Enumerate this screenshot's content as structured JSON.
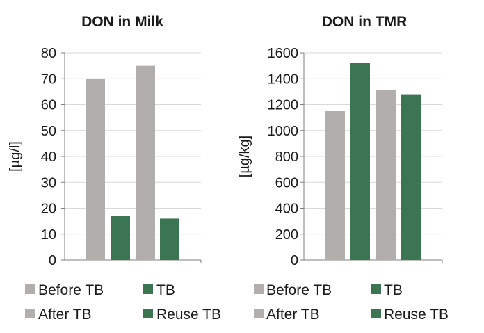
{
  "chart_data": [
    {
      "type": "bar",
      "title": "DON in Milk",
      "ylabel": "[µg/l]",
      "xlabel": "",
      "ylim": [
        0,
        80
      ],
      "yticks": [
        0,
        10,
        20,
        30,
        40,
        50,
        60,
        70,
        80
      ],
      "grid": true,
      "legend_position": "bottom",
      "series": [
        {
          "name": "Before TB",
          "color": "#b2aeac",
          "value": 70
        },
        {
          "name": "TB",
          "color": "#3c7552",
          "value": 17
        },
        {
          "name": "After TB",
          "color": "#b2aeac",
          "value": 75
        },
        {
          "name": "Reuse TB",
          "color": "#3c7552",
          "value": 16
        }
      ]
    },
    {
      "type": "bar",
      "title": "DON in TMR",
      "ylabel": "[µg/kg]",
      "xlabel": "",
      "ylim": [
        0,
        1600
      ],
      "yticks": [
        0,
        200,
        400,
        600,
        800,
        1000,
        1200,
        1400,
        1600
      ],
      "grid": true,
      "legend_position": "bottom",
      "series": [
        {
          "name": "Before TB",
          "color": "#b2aeac",
          "value": 1150
        },
        {
          "name": "TB",
          "color": "#3c7552",
          "value": 1520
        },
        {
          "name": "After TB",
          "color": "#b2aeac",
          "value": 1310
        },
        {
          "name": "Reuse TB",
          "color": "#3c7552",
          "value": 1280
        }
      ]
    }
  ]
}
